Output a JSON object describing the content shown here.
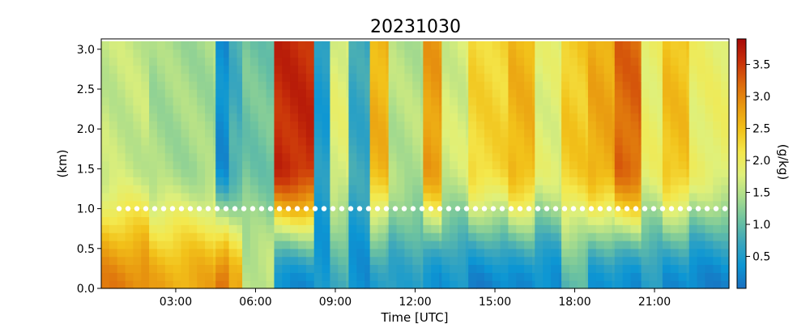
{
  "chart_data": {
    "type": "heatmap",
    "title": "20231030",
    "xlabel": "Time [UTC]",
    "ylabel": "(km)",
    "colorbar_label": "(g/kg)",
    "x_unit": "hours UTC",
    "xlim": [
      0.2,
      23.8
    ],
    "ylim": [
      0.0,
      3.13
    ],
    "clim": [
      0.0,
      3.9
    ],
    "x_ticks": [
      3,
      6,
      9,
      12,
      15,
      18,
      21
    ],
    "x_tick_labels": [
      "03:00",
      "06:00",
      "09:00",
      "12:00",
      "15:00",
      "18:00",
      "21:00"
    ],
    "y_ticks": [
      0.0,
      0.5,
      1.0,
      1.5,
      2.0,
      2.5,
      3.0
    ],
    "y_tick_labels": [
      "0.0",
      "0.5",
      "1.0",
      "1.5",
      "2.0",
      "2.5",
      "3.0"
    ],
    "colorbar_ticks": [
      0.5,
      1.0,
      1.5,
      2.0,
      2.5,
      3.0,
      3.5
    ],
    "colorbar_tick_labels": [
      "0.5",
      "1.0",
      "1.5",
      "2.0",
      "2.5",
      "3.0",
      "3.5"
    ],
    "colormap": [
      "#1a6fc0",
      "#0c96d4",
      "#3aa6bd",
      "#6cc2a0",
      "#a8dc8c",
      "#dff07a",
      "#f4e84c",
      "#f2c21a",
      "#e99a10",
      "#dc6a0c",
      "#c8300a",
      "#a70808"
    ],
    "overlay_line": {
      "y": 1.0,
      "color": "#ffffff",
      "style": "dotted"
    },
    "heights_km": [
      0.05,
      0.15,
      0.25,
      0.35,
      0.45,
      0.55,
      0.65,
      0.75,
      0.85,
      0.95,
      1.05,
      1.15,
      1.25,
      1.35,
      1.45,
      1.55,
      1.65,
      1.75,
      1.85,
      1.95,
      2.05,
      2.15,
      2.25,
      2.35,
      2.45,
      2.55,
      2.65,
      2.75,
      2.85,
      2.95,
      3.05
    ],
    "segments": [
      {
        "t": [
          0.2,
          2.0
        ],
        "surface": 3.0,
        "upper": 1.6
      },
      {
        "t": [
          2.0,
          4.5
        ],
        "surface": 2.7,
        "upper": 1.4
      },
      {
        "t": [
          4.5,
          5.0
        ],
        "surface": 3.2,
        "upper": 0.3
      },
      {
        "t": [
          5.0,
          5.5
        ],
        "surface": 2.6,
        "upper": 0.8
      },
      {
        "t": [
          5.5,
          6.7
        ],
        "surface": 1.6,
        "upper": 1.1
      },
      {
        "t": [
          6.7,
          8.2
        ],
        "surface": 0.3,
        "upper": 3.6
      },
      {
        "t": [
          8.2,
          8.8
        ],
        "surface": 0.4,
        "upper": 0.5
      },
      {
        "t": [
          8.8,
          9.5
        ],
        "surface": 0.8,
        "upper": 1.8
      },
      {
        "t": [
          9.5,
          10.3
        ],
        "surface": 0.3,
        "upper": 0.7
      },
      {
        "t": [
          10.3,
          11.0
        ],
        "surface": 0.5,
        "upper": 2.6
      },
      {
        "t": [
          11.0,
          12.3
        ],
        "surface": 0.6,
        "upper": 1.5
      },
      {
        "t": [
          12.3,
          13.0
        ],
        "surface": 0.3,
        "upper": 2.8
      },
      {
        "t": [
          13.0,
          14.0
        ],
        "surface": 0.4,
        "upper": 1.7
      },
      {
        "t": [
          14.0,
          15.5
        ],
        "surface": 0.2,
        "upper": 2.3
      },
      {
        "t": [
          15.5,
          16.5
        ],
        "surface": 0.3,
        "upper": 2.6
      },
      {
        "t": [
          16.5,
          17.5
        ],
        "surface": 0.3,
        "upper": 1.8
      },
      {
        "t": [
          17.5,
          18.5
        ],
        "surface": 0.9,
        "upper": 2.4
      },
      {
        "t": [
          18.5,
          19.5
        ],
        "surface": 0.4,
        "upper": 2.7
      },
      {
        "t": [
          19.5,
          20.5
        ],
        "surface": 0.3,
        "upper": 3.2
      },
      {
        "t": [
          20.5,
          21.3
        ],
        "surface": 0.5,
        "upper": 1.9
      },
      {
        "t": [
          21.3,
          22.3
        ],
        "surface": 0.3,
        "upper": 2.5
      },
      {
        "t": [
          22.3,
          23.8
        ],
        "surface": 0.2,
        "upper": 1.9
      }
    ]
  }
}
